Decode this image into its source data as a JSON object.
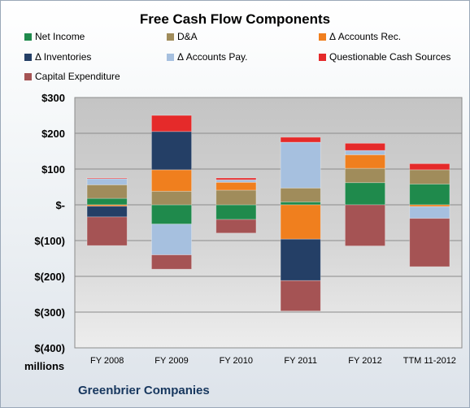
{
  "chart_data": {
    "type": "bar",
    "stacked": true,
    "title": "Free Cash Flow Components",
    "ylabel": "",
    "xlabel": "",
    "units": "millions",
    "caption": "Greenbrier Companies",
    "categories": [
      "FY 2008",
      "FY 2009",
      "FY 2010",
      "FY 2011",
      "FY 2012",
      "TTM 11-2012"
    ],
    "ylim": [
      -400,
      300
    ],
    "yticks": [
      300,
      200,
      100,
      0,
      -100,
      -200,
      -300,
      -400
    ],
    "ytick_labels": [
      "$300",
      "$200",
      "$100",
      "$-",
      "$(100)",
      "$(200)",
      "$(300)",
      "$(400)"
    ],
    "legend_position": "top",
    "series": [
      {
        "name": "Net Income",
        "color": "#1f8a4c",
        "values": [
          18,
          -54,
          -41,
          8,
          62,
          58
        ]
      },
      {
        "name": "D&A",
        "color": "#a08c5b",
        "values": [
          38,
          38,
          41,
          39,
          40,
          40
        ]
      },
      {
        "name": "Δ Accounts Rec.",
        "color": "#f07f1e",
        "values": [
          -4,
          60,
          22,
          -96,
          38,
          -5
        ]
      },
      {
        "name": "Δ Inventories",
        "color": "#243f66",
        "values": [
          -30,
          107,
          0,
          -116,
          0,
          0
        ]
      },
      {
        "name": "Δ Accounts Pay.",
        "color": "#a6c0df",
        "values": [
          17,
          -86,
          7,
          128,
          12,
          -33
        ]
      },
      {
        "name": "Questionable Cash Sources",
        "color": "#e52a2a",
        "values": [
          2,
          45,
          5,
          14,
          20,
          17
        ]
      },
      {
        "name": "Capital Expenditure",
        "color": "#a55354",
        "values": [
          -80,
          -40,
          -38,
          -85,
          -115,
          -135
        ]
      }
    ],
    "grid": true
  }
}
